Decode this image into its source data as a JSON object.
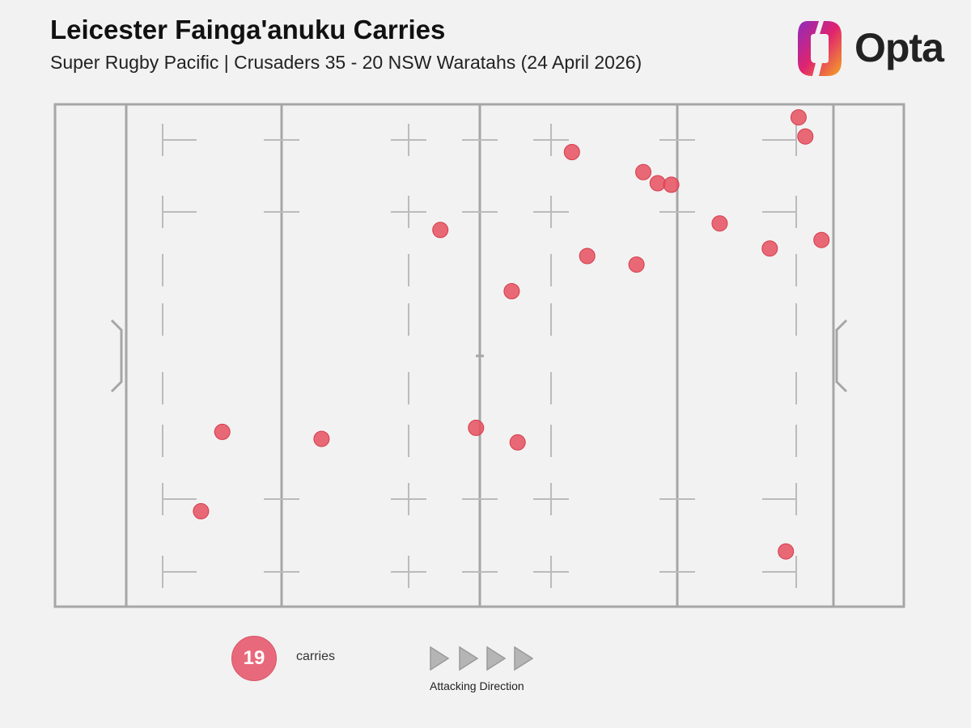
{
  "header": {
    "title": "Leicester Fainga'anuku Carries",
    "subtitle": "Super Rugby Pacific | Crusaders 35 - 20 NSW Waratahs (24 April 2026)"
  },
  "brand": {
    "logo_text": "Opta",
    "icon": "opta-logo-icon"
  },
  "legend": {
    "count": "19",
    "count_label": "carries",
    "direction_label": "Attacking Direction",
    "arrow_icon": "triangle-right-icon"
  },
  "colors": {
    "background": "#f2f2f2",
    "pitch_line": "#a6a6a6",
    "marker_fill": "#e8505f",
    "marker_edge": "#d43c4c",
    "legend_fill": "#e8697b",
    "arrow_fill": "#b5b5b5",
    "arrow_stroke": "#9a9a9a"
  },
  "chart_data": {
    "type": "scatter",
    "xlim": [
      0,
      100
    ],
    "ylim": [
      0,
      100
    ],
    "grid": false,
    "series": [
      {
        "points": [
          {
            "x": 87.6,
            "y": 97.4
          },
          {
            "x": 88.4,
            "y": 93.6
          },
          {
            "x": 60.9,
            "y": 90.5
          },
          {
            "x": 69.3,
            "y": 86.5
          },
          {
            "x": 71.0,
            "y": 84.3
          },
          {
            "x": 72.6,
            "y": 84.0
          },
          {
            "x": 78.3,
            "y": 76.3
          },
          {
            "x": 90.3,
            "y": 73.0
          },
          {
            "x": 45.4,
            "y": 75.0
          },
          {
            "x": 84.2,
            "y": 71.3
          },
          {
            "x": 62.7,
            "y": 69.8
          },
          {
            "x": 68.5,
            "y": 68.1
          },
          {
            "x": 53.8,
            "y": 62.8
          },
          {
            "x": 19.7,
            "y": 34.8
          },
          {
            "x": 31.4,
            "y": 33.4
          },
          {
            "x": 49.6,
            "y": 35.6
          },
          {
            "x": 54.5,
            "y": 32.7
          },
          {
            "x": 17.2,
            "y": 19.0
          },
          {
            "x": 86.1,
            "y": 11.0
          }
        ]
      }
    ]
  }
}
